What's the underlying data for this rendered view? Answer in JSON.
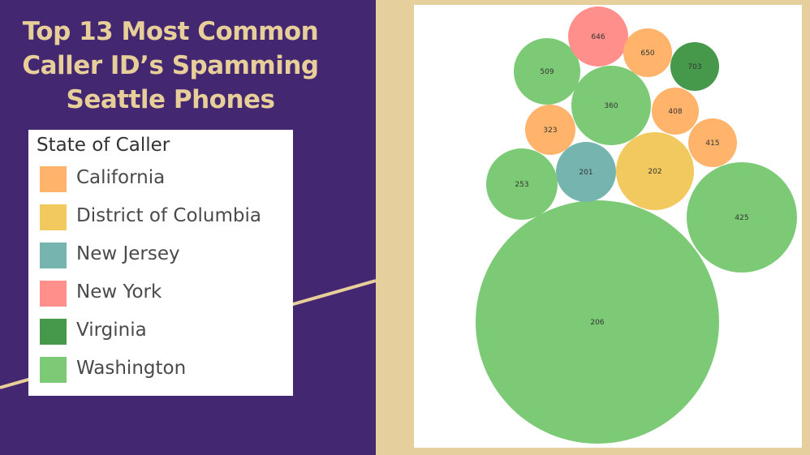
{
  "title_lines": [
    "Top 13 Most Common",
    "Caller ID’s Spamming",
    "Seattle Phones"
  ],
  "legend": {
    "title": "State of Caller",
    "items": [
      {
        "label": "California",
        "color": "#ffb36b"
      },
      {
        "label": "District of Columbia",
        "color": "#f2c95e"
      },
      {
        "label": "New Jersey",
        "color": "#76b5af"
      },
      {
        "label": "New York",
        "color": "#ff8f8a"
      },
      {
        "label": "Virginia",
        "color": "#46994b"
      },
      {
        "label": "Washington",
        "color": "#7dca76"
      }
    ]
  },
  "chart_data": {
    "type": "bubble",
    "title": "",
    "series": [
      {
        "label": "206",
        "state": "Washington"
      },
      {
        "label": "425",
        "state": "Washington"
      },
      {
        "label": "202",
        "state": "District of Columbia"
      },
      {
        "label": "360",
        "state": "Washington"
      },
      {
        "label": "201",
        "state": "New Jersey"
      },
      {
        "label": "253",
        "state": "Washington"
      },
      {
        "label": "509",
        "state": "Washington"
      },
      {
        "label": "646",
        "state": "New York"
      },
      {
        "label": "650",
        "state": "California"
      },
      {
        "label": "703",
        "state": "Virginia"
      },
      {
        "label": "408",
        "state": "California"
      },
      {
        "label": "415",
        "state": "California"
      },
      {
        "label": "323",
        "state": "California"
      }
    ]
  }
}
